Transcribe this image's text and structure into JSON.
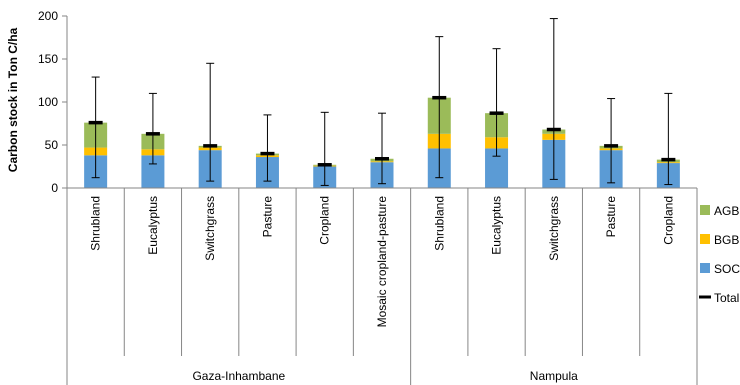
{
  "chart_data": {
    "type": "bar",
    "stacked": true,
    "ylabel": "Carbon stock in Ton C/ha",
    "xlabel": "",
    "ylim": [
      0,
      200
    ],
    "yticks": [
      0,
      50,
      100,
      150,
      200
    ],
    "grid": false,
    "legend_position": "right",
    "groups": [
      {
        "name": "Gaza-Inhambane",
        "categories": [
          "Shrubland",
          "Eucalyptus",
          "Switchgrass",
          "Pasture",
          "Cropland",
          "Mosaic cropland-pasture"
        ]
      },
      {
        "name": "Nampula",
        "categories": [
          "Shrubland",
          "Eucalyptus",
          "Switchgrass",
          "Pasture",
          "Cropland"
        ]
      }
    ],
    "categories": [
      "Shrubland",
      "Eucalyptus",
      "Switchgrass",
      "Pasture",
      "Cropland",
      "Mosaic cropland-pasture",
      "Shrubland",
      "Eucalyptus",
      "Switchgrass",
      "Pasture",
      "Cropland"
    ],
    "series": [
      {
        "name": "SOC",
        "color": "#5b9bd5",
        "values": [
          38,
          38,
          44,
          36,
          25,
          30,
          46,
          46,
          56,
          44,
          29
        ]
      },
      {
        "name": "BGB",
        "color": "#ffc000",
        "values": [
          9,
          7,
          3,
          2,
          1,
          1,
          17,
          13,
          7,
          2,
          1
        ]
      },
      {
        "name": "AGB",
        "color": "#9bbb59",
        "values": [
          29,
          18,
          2,
          2,
          1,
          3,
          42,
          28,
          5,
          3,
          3
        ]
      }
    ],
    "total": {
      "name": "Total",
      "color": "#000000",
      "values": [
        76,
        63,
        49,
        40,
        27,
        34,
        105,
        87,
        68,
        49,
        33
      ],
      "error_low": [
        12,
        28,
        8,
        8,
        3,
        5,
        12,
        37,
        10,
        6,
        4
      ],
      "error_high": [
        129,
        110,
        145,
        85,
        88,
        87,
        176,
        162,
        197,
        104,
        110
      ]
    },
    "legend": [
      "AGB",
      "BGB",
      "SOC",
      "Total"
    ]
  }
}
